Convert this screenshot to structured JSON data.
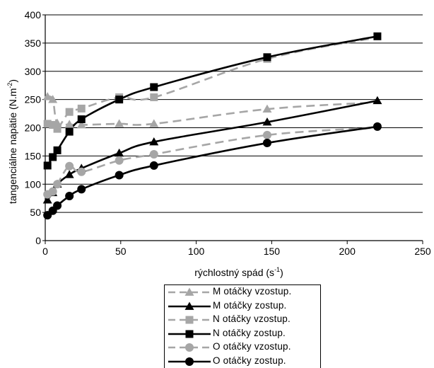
{
  "chart_data": {
    "type": "line",
    "title": "",
    "xlabel": "rýchlostný spád (s",
    "xlabel_sup": "-1",
    "xlabel_close": ")",
    "ylabel": "tangenciálne napätie (N.m",
    "ylabel_sup": "-2",
    "ylabel_close": ")",
    "xlim": [
      0,
      250
    ],
    "ylim": [
      0,
      400
    ],
    "xticks": [
      "0",
      "50",
      "100",
      "150",
      "200",
      "250"
    ],
    "yticks": [
      "0",
      "50",
      "100",
      "150",
      "200",
      "250",
      "300",
      "350",
      "400"
    ],
    "grid": "horizontal",
    "legend_position": "bottom-center",
    "series": [
      {
        "name": "M  otáčky vzostup.",
        "color": "#a6a6a6",
        "dash": "dashed",
        "marker": "triangle",
        "x": [
          1.5,
          5,
          8,
          16,
          24,
          49,
          72,
          147,
          220
        ],
        "y": [
          255,
          250,
          208,
          206,
          205,
          207,
          207,
          233,
          245
        ],
        "marker_at": [
          true,
          true,
          true,
          true,
          true,
          true,
          true,
          true,
          false
        ]
      },
      {
        "name": "M  otáčky zostup.",
        "color": "#000000",
        "dash": "solid",
        "marker": "triangle",
        "x": [
          1.5,
          5,
          8,
          16,
          24,
          49,
          72,
          147,
          220
        ],
        "y": [
          72,
          85,
          100,
          117,
          128,
          155,
          175,
          210,
          248
        ],
        "marker_at": [
          true,
          true,
          true,
          true,
          true,
          true,
          true,
          true,
          true
        ]
      },
      {
        "name": "N  otáčky vzostup.",
        "color": "#a6a6a6",
        "dash": "dashed",
        "marker": "square",
        "x": [
          1.5,
          5,
          8,
          16,
          24,
          49,
          72,
          147,
          220
        ],
        "y": [
          207,
          205,
          198,
          228,
          234,
          254,
          254,
          322,
          360
        ],
        "marker_at": [
          true,
          true,
          true,
          true,
          true,
          true,
          true,
          true,
          false
        ]
      },
      {
        "name": "N  otáčky zostup.",
        "color": "#000000",
        "dash": "solid",
        "marker": "square",
        "x": [
          1.5,
          5,
          8,
          16,
          24,
          49,
          72,
          147,
          220
        ],
        "y": [
          133,
          148,
          160,
          193,
          215,
          250,
          272,
          325,
          362
        ],
        "marker_at": [
          true,
          true,
          true,
          true,
          true,
          true,
          true,
          true,
          true
        ]
      },
      {
        "name": "O  otáčky vzostup.",
        "color": "#a6a6a6",
        "dash": "dashed",
        "marker": "circle",
        "x": [
          1.5,
          5,
          8,
          16,
          24,
          49,
          72,
          147,
          220
        ],
        "y": [
          82,
          87,
          100,
          132,
          122,
          142,
          153,
          187,
          200
        ],
        "marker_at": [
          true,
          true,
          true,
          true,
          true,
          true,
          true,
          true,
          false
        ]
      },
      {
        "name": "O  otáčky zostup.",
        "color": "#000000",
        "dash": "solid",
        "marker": "circle",
        "x": [
          1.5,
          5,
          8,
          16,
          24,
          49,
          72,
          147,
          220
        ],
        "y": [
          45,
          53,
          62,
          79,
          91,
          116,
          133,
          173,
          202
        ],
        "marker_at": [
          true,
          true,
          true,
          true,
          true,
          true,
          true,
          true,
          true
        ]
      }
    ]
  }
}
